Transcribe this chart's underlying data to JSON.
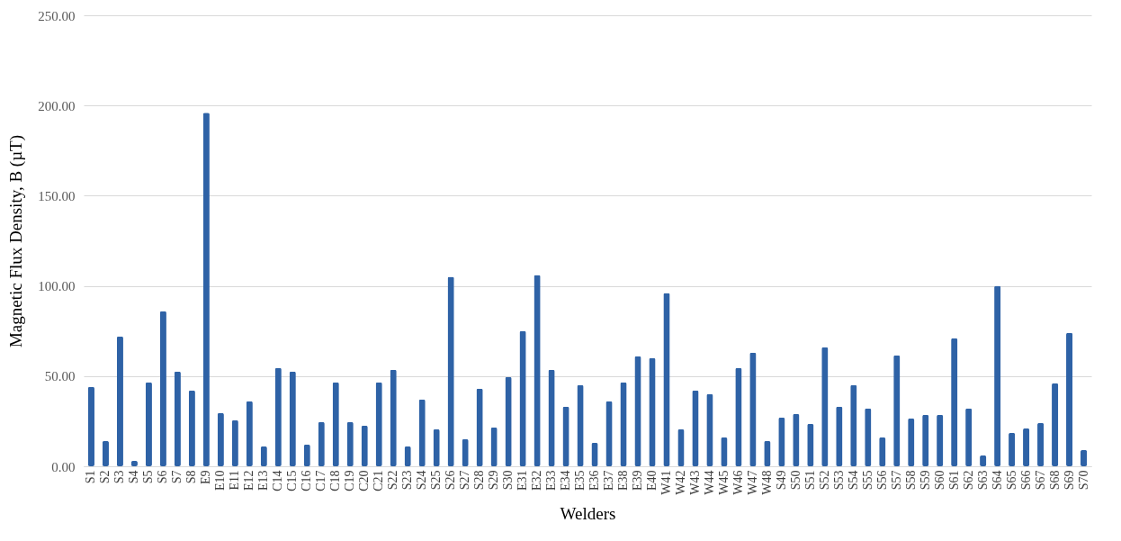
{
  "chart_data": {
    "type": "bar",
    "xlabel": "Welders",
    "ylabel": "Magnetic Flux Density, B (µT)",
    "categories": [
      "S1",
      "S2",
      "S3",
      "S4",
      "S5",
      "S6",
      "S7",
      "S8",
      "E9",
      "E10",
      "E11",
      "E12",
      "E13",
      "C14",
      "C15",
      "C16",
      "C17",
      "C18",
      "C19",
      "C20",
      "C21",
      "S22",
      "S23",
      "S24",
      "S25",
      "S26",
      "S27",
      "S28",
      "S29",
      "S30",
      "E31",
      "E32",
      "E33",
      "E34",
      "E35",
      "E36",
      "E37",
      "E38",
      "E39",
      "E40",
      "W41",
      "W42",
      "W43",
      "W44",
      "W45",
      "W46",
      "W47",
      "W48",
      "S49",
      "S50",
      "S51",
      "S52",
      "S53",
      "S54",
      "S55",
      "S56",
      "S57",
      "S58",
      "S59",
      "S60",
      "S61",
      "S62",
      "S63",
      "S64",
      "S65",
      "S66",
      "S67",
      "S68",
      "S69",
      "S70"
    ],
    "values": [
      44,
      14,
      72,
      3,
      46.5,
      86,
      52.5,
      42,
      196,
      29.5,
      25.5,
      36,
      11,
      54.5,
      52.5,
      12,
      24.5,
      46.5,
      24.5,
      22.5,
      46.5,
      53.5,
      11,
      37,
      20.5,
      105,
      15,
      43,
      21.5,
      49.5,
      75,
      106,
      53.5,
      33,
      45,
      13,
      36,
      46.5,
      61,
      60,
      96,
      20.5,
      42,
      40,
      16,
      54.5,
      63,
      14,
      27,
      29,
      23.5,
      66,
      33,
      45,
      32,
      16,
      61.5,
      26.5,
      28.5,
      28.5,
      71,
      32,
      6,
      100,
      18.5,
      21,
      24,
      46,
      74,
      9
    ],
    "color": "#2e62a6",
    "ylim": [
      0,
      250
    ],
    "yticks": [
      {
        "value": 0,
        "label": "0.00"
      },
      {
        "value": 50,
        "label": "50.00"
      },
      {
        "value": 100,
        "label": "100.00"
      },
      {
        "value": 150,
        "label": "150.00"
      },
      {
        "value": 200,
        "label": "200.00"
      },
      {
        "value": 250,
        "label": "250.00"
      }
    ],
    "grid": "y"
  }
}
